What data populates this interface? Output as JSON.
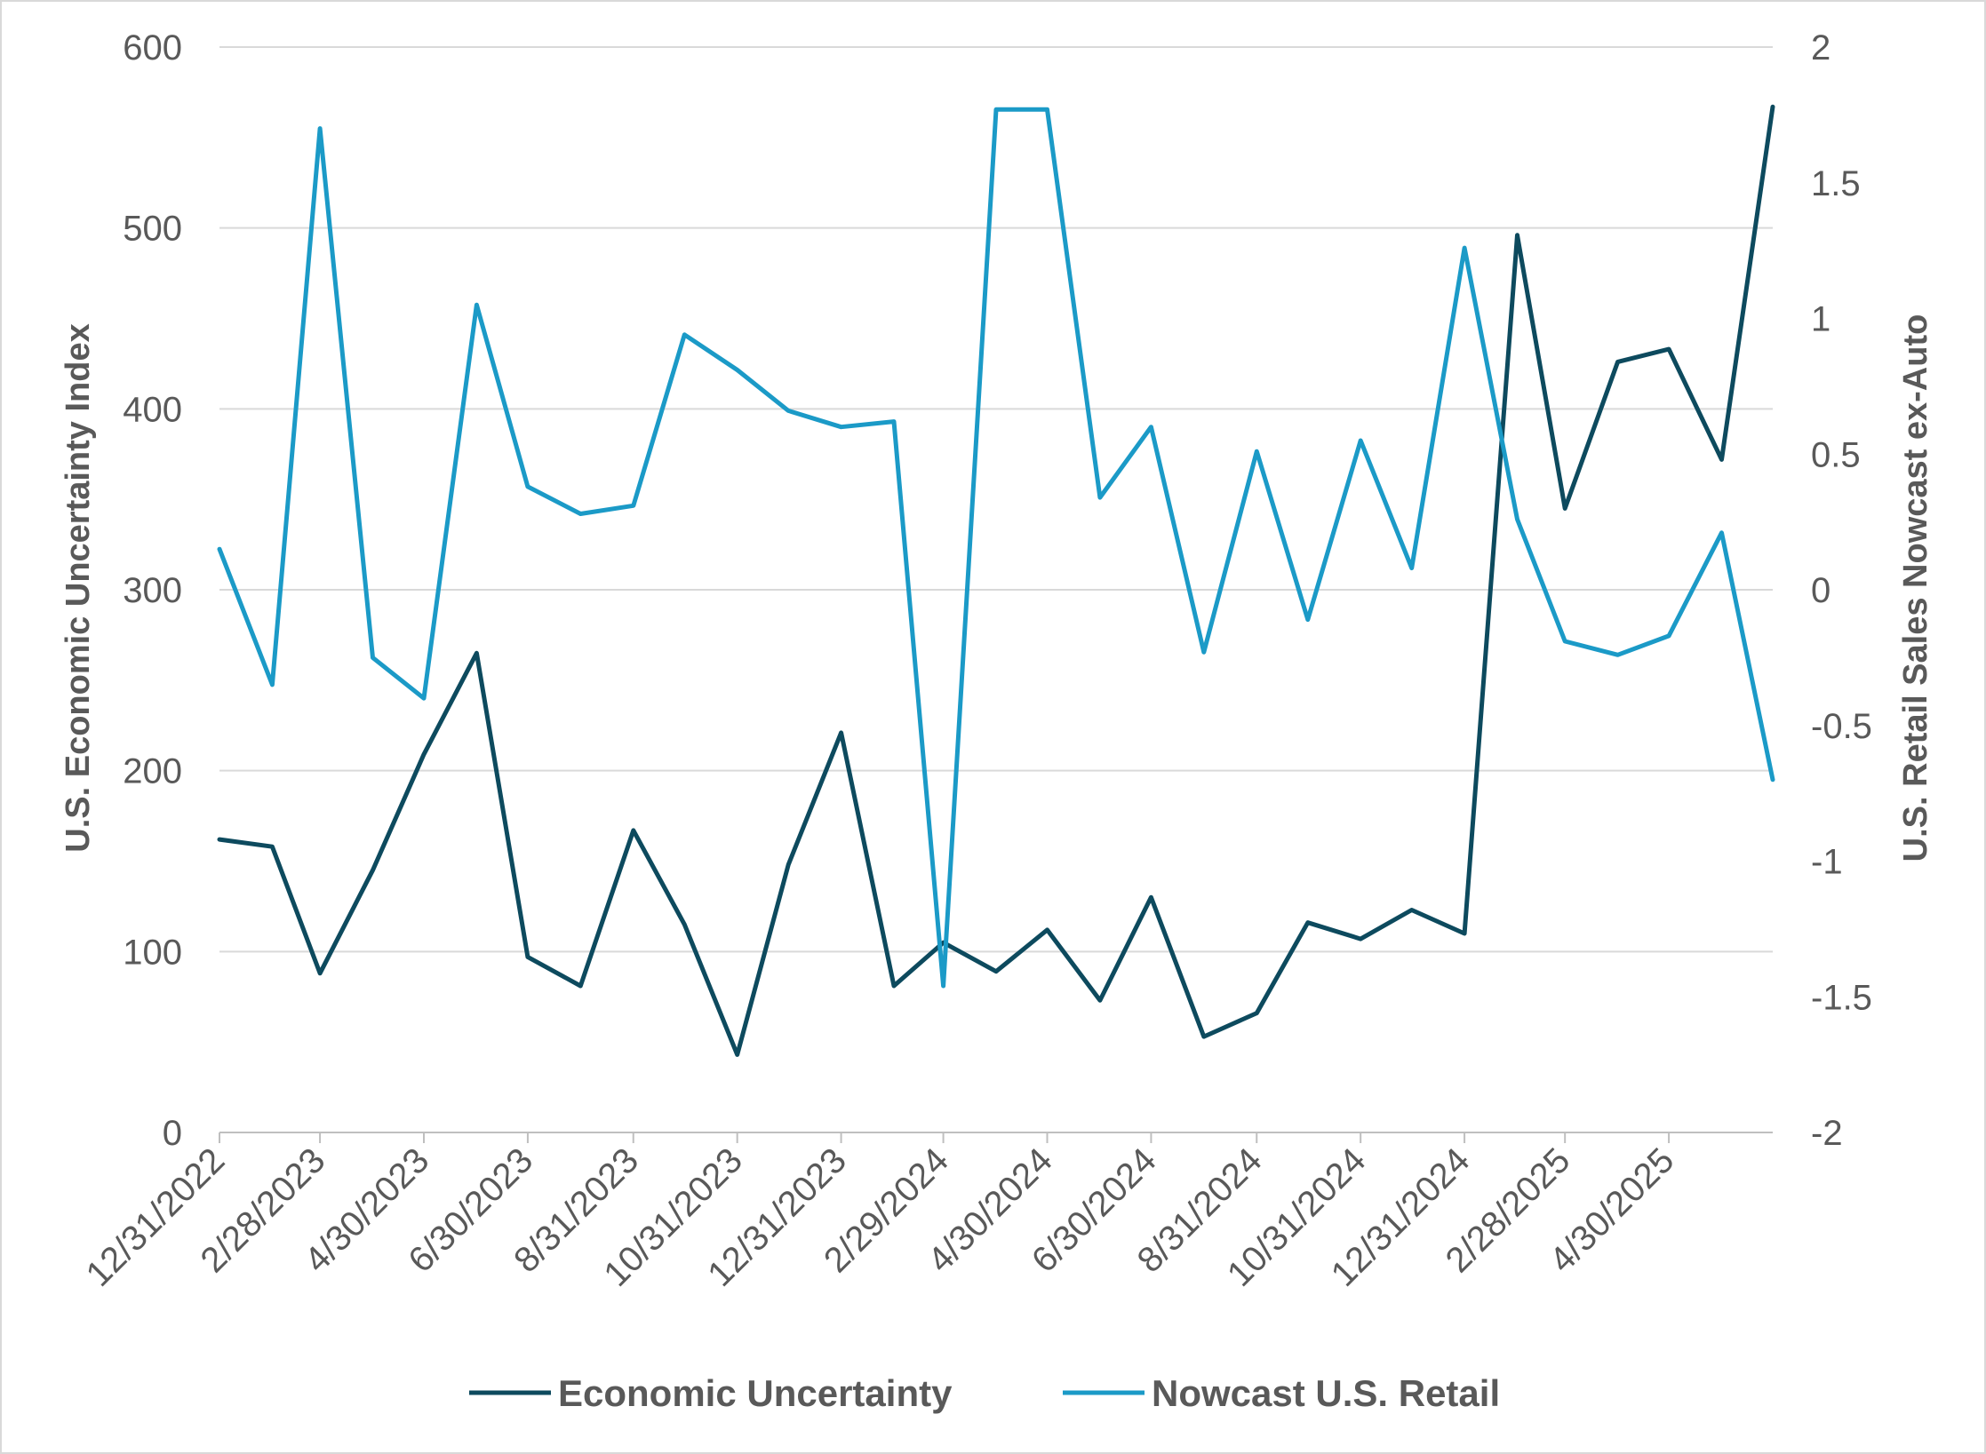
{
  "chart_data": {
    "type": "line",
    "title": "",
    "x_tick_labels": [
      "12/31/2022",
      "2/28/2023",
      "4/30/2023",
      "6/30/2023",
      "8/31/2023",
      "10/31/2023",
      "12/31/2023",
      "2/29/2024",
      "4/30/2024",
      "6/30/2024",
      "8/31/2024",
      "10/31/2024",
      "12/31/2024",
      "2/28/2025",
      "4/30/2025"
    ],
    "x": [
      "12/31/2022",
      "1/31/2023",
      "2/28/2023",
      "3/31/2023",
      "4/30/2023",
      "5/31/2023",
      "6/30/2023",
      "7/31/2023",
      "8/31/2023",
      "9/30/2023",
      "10/31/2023",
      "11/30/2023",
      "12/31/2023",
      "1/31/2024",
      "2/29/2024",
      "3/31/2024",
      "4/30/2024",
      "5/31/2024",
      "6/30/2024",
      "7/31/2024",
      "8/31/2024",
      "9/30/2024",
      "10/31/2024",
      "11/30/2024",
      "12/31/2024",
      "1/31/2025",
      "2/28/2025",
      "3/31/2025",
      "4/30/2025",
      "5/31/2025",
      "6/30/2025"
    ],
    "y_left": {
      "label": "U.S. Economic Uncertainty Index",
      "ticks": [
        0,
        100,
        200,
        300,
        400,
        500,
        600
      ],
      "lim": [
        0,
        600
      ]
    },
    "y_right": {
      "label": "U.S. Retail Sales Nowcast ex-Auto",
      "ticks": [
        "-2",
        "-1.5",
        "-1",
        "-0.5",
        "0",
        "0.5",
        "1",
        "1.5",
        "2"
      ],
      "lim": [
        -2,
        2
      ]
    },
    "grid": true,
    "legend_position": "bottom",
    "series": [
      {
        "name": "Economic Uncertainty",
        "axis": "left",
        "color": "#0d4a5e",
        "values": [
          162,
          158,
          88,
          145,
          209,
          265,
          97,
          81,
          167,
          115,
          43,
          148,
          221,
          81,
          105,
          89,
          112,
          73,
          130,
          53,
          66,
          116,
          107,
          123,
          110,
          496,
          345,
          426,
          433,
          372,
          567
        ]
      },
      {
        "name": "Nowcast U.S. Retail",
        "axis": "right",
        "color": "#1b9ac7",
        "values": [
          0.15,
          -0.35,
          1.7,
          -0.25,
          -0.4,
          1.05,
          0.38,
          0.28,
          0.31,
          0.94,
          0.81,
          0.66,
          0.6,
          0.62,
          -1.46,
          1.77,
          1.77,
          0.34,
          0.6,
          -0.23,
          0.51,
          -0.11,
          0.55,
          0.08,
          1.26,
          0.26,
          -0.19,
          -0.24,
          -0.17,
          0.21,
          -0.7
        ]
      }
    ]
  }
}
